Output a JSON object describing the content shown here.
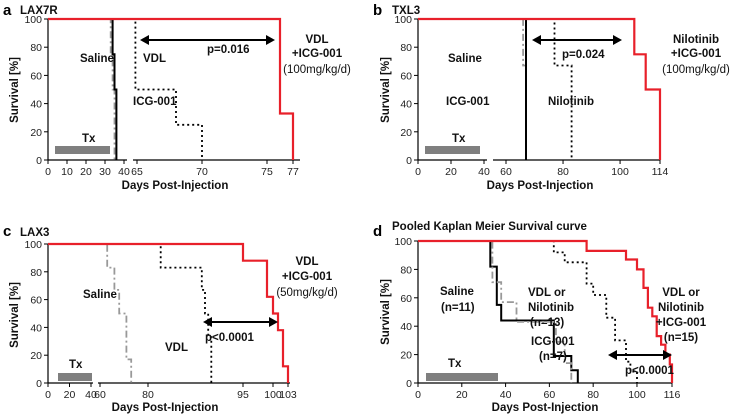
{
  "figure": {
    "xlabel": "Days Post-Injection",
    "ylabel": "Survival [%]"
  },
  "chart_data": [
    {
      "panel": "a",
      "type": "line",
      "title": "LAX7R",
      "xlabel": "Days Post-Injection",
      "ylabel": "Survival [%]",
      "ylim": [
        0,
        100
      ],
      "axis_break": true,
      "x_ticks": [
        "0",
        "10",
        "20",
        "30",
        "40",
        "65",
        "70",
        "75",
        "77"
      ],
      "y_ticks": [
        "0",
        "20",
        "40",
        "60",
        "80",
        "100"
      ],
      "series": [
        {
          "name": "Saline",
          "style": "dashdot",
          "color": "#999999",
          "x": [
            0,
            33,
            33,
            34,
            34,
            35,
            35
          ],
          "y": [
            100,
            100,
            75,
            75,
            50,
            50,
            0
          ]
        },
        {
          "name": "ICG-001",
          "style": "solid",
          "color": "#000000",
          "x": [
            0,
            34,
            34,
            35,
            35,
            36,
            36
          ],
          "y": [
            100,
            100,
            75,
            75,
            50,
            50,
            0
          ]
        },
        {
          "name": "VDL",
          "style": "dotted",
          "color": "#000000",
          "x": [
            0,
            62,
            62,
            68,
            68,
            70,
            70
          ],
          "y": [
            100,
            100,
            50,
            50,
            25,
            25,
            0
          ]
        },
        {
          "name": "",
          "style": "solid",
          "color": "#e8202a",
          "x": [
            0,
            76,
            76,
            77,
            77
          ],
          "y": [
            100,
            100,
            33,
            33,
            0
          ]
        }
      ],
      "labels": [
        {
          "text": "Saline"
        },
        {
          "text": "ICG-001"
        },
        {
          "text": "VDL"
        },
        {
          "text": "VDL"
        },
        {
          "text": "+ICG-001"
        },
        {
          "text": "(100mg/kg/d)"
        }
      ],
      "pvalue": "p=0.016",
      "tx_label": "Tx"
    },
    {
      "panel": "b",
      "type": "line",
      "title": "TXL3",
      "xlabel": "Days Post-Injection",
      "ylabel": "Survival [%]",
      "ylim": [
        0,
        100
      ],
      "axis_break": true,
      "x_ticks": [
        "0",
        "20",
        "40",
        "60",
        "80",
        "100",
        "114"
      ],
      "y_ticks": [
        "0",
        "20",
        "40",
        "60",
        "80",
        "100"
      ],
      "series": [
        {
          "name": "Saline",
          "style": "dashdot",
          "color": "#999999",
          "x": [
            0,
            66,
            66,
            67,
            67
          ],
          "y": [
            100,
            100,
            67,
            67,
            0
          ]
        },
        {
          "name": "ICG-001",
          "style": "solid",
          "color": "#000000",
          "x": [
            0,
            67,
            67
          ],
          "y": [
            100,
            100,
            0
          ]
        },
        {
          "name": "Nilotinib",
          "style": "dotted",
          "color": "#000000",
          "x": [
            0,
            77,
            77,
            83,
            83
          ],
          "y": [
            100,
            100,
            67,
            67,
            0
          ]
        },
        {
          "name": "",
          "style": "solid",
          "color": "#e8202a",
          "x": [
            0,
            105,
            105,
            109,
            109,
            114,
            114
          ],
          "y": [
            100,
            100,
            75,
            75,
            50,
            50,
            0
          ]
        }
      ],
      "labels": [
        {
          "text": "Saline"
        },
        {
          "text": "ICG-001"
        },
        {
          "text": "Nilotinib"
        },
        {
          "text": "Nilotinib"
        },
        {
          "text": "+ICG-001"
        },
        {
          "text": "(100mg/kg/d)"
        }
      ],
      "pvalue": "p=0.024",
      "tx_label": "Tx"
    },
    {
      "panel": "c",
      "type": "line",
      "title": "LAX3",
      "xlabel": "Days Post-Injection",
      "ylabel": "Survival [%]",
      "ylim": [
        0,
        100
      ],
      "axis_break": true,
      "x_ticks": [
        "0",
        "20",
        "40",
        "60",
        "80",
        "95",
        "100",
        "103"
      ],
      "y_ticks": [
        "0",
        "20",
        "40",
        "60",
        "80",
        "100"
      ],
      "series": [
        {
          "name": "Saline",
          "style": "dashdot",
          "color": "#999999",
          "x": [
            0,
            63,
            63,
            66,
            66,
            68,
            68,
            71,
            71,
            73,
            73
          ],
          "y": [
            100,
            100,
            83,
            83,
            67,
            67,
            50,
            50,
            17,
            17,
            0
          ]
        },
        {
          "name": "VDL",
          "style": "dotted",
          "color": "#000000",
          "x": [
            0,
            82,
            82,
            88.5,
            88.5,
            89,
            89,
            89.5,
            89.5,
            90,
            90
          ],
          "y": [
            100,
            100,
            83,
            83,
            67,
            67,
            50,
            50,
            33,
            33,
            0
          ]
        },
        {
          "name": "",
          "style": "solid",
          "color": "#e8202a",
          "x": [
            0,
            95,
            95,
            99,
            99,
            100,
            100,
            101,
            101,
            102,
            102,
            103,
            103
          ],
          "y": [
            100,
            100,
            88,
            88,
            62,
            62,
            50,
            50,
            38,
            38,
            12,
            12,
            0
          ]
        }
      ],
      "labels": [
        {
          "text": "Saline"
        },
        {
          "text": "VDL"
        },
        {
          "text": "VDL"
        },
        {
          "text": "+ICG-001"
        },
        {
          "text": "(50mg/kg/d)"
        }
      ],
      "pvalue": "p<0.0001",
      "tx_label": "Tx"
    },
    {
      "panel": "d",
      "type": "line",
      "title": "Pooled Kaplan Meier Survival curve",
      "xlabel": "Days Post-Injection",
      "ylabel": "Survival [%]",
      "ylim": [
        0,
        100
      ],
      "x_ticks": [
        "0",
        "20",
        "40",
        "60",
        "80",
        "100",
        "116"
      ],
      "y_ticks": [
        "0",
        "20",
        "40",
        "60",
        "80",
        "100"
      ],
      "series": [
        {
          "name": "Saline",
          "style": "solid",
          "color": "#000000",
          "x": [
            0,
            33,
            33,
            36,
            36,
            38,
            38,
            62,
            62,
            70,
            70,
            73,
            73
          ],
          "y": [
            100,
            100,
            82,
            82,
            55,
            55,
            44,
            44,
            19,
            19,
            9,
            9,
            0
          ]
        },
        {
          "name": "ICG-001",
          "style": "dashdot",
          "color": "#999999",
          "x": [
            0,
            34,
            34,
            38,
            38,
            45,
            45,
            63,
            63,
            67,
            67,
            70,
            70
          ],
          "y": [
            100,
            100,
            71,
            71,
            57,
            57,
            43,
            43,
            29,
            29,
            14,
            14,
            0
          ]
        },
        {
          "name": "VDL or Nilotinib",
          "style": "dotted",
          "color": "#000000",
          "x": [
            0,
            62,
            62,
            67,
            67,
            77,
            77,
            80,
            80,
            86,
            86,
            90,
            90,
            95,
            95,
            97,
            97,
            100,
            100
          ],
          "y": [
            100,
            100,
            92,
            92,
            85,
            85,
            70,
            70,
            62,
            62,
            46,
            46,
            30,
            30,
            15,
            15,
            8,
            8,
            0
          ]
        },
        {
          "name": "VDL or Nilotinib +ICG-001",
          "style": "solid",
          "color": "#e8202a",
          "x": [
            0,
            77,
            77,
            95,
            95,
            100,
            100,
            103,
            103,
            105,
            105,
            107,
            107,
            109,
            109,
            111,
            111,
            113,
            113,
            115,
            115,
            116,
            116
          ],
          "y": [
            100,
            100,
            93,
            93,
            87,
            87,
            80,
            80,
            67,
            67,
            53,
            53,
            47,
            47,
            33,
            33,
            27,
            27,
            20,
            20,
            13,
            13,
            0
          ]
        }
      ],
      "labels": [
        {
          "text": "Saline"
        },
        {
          "text": "(n=11)"
        },
        {
          "text": "VDL or"
        },
        {
          "text": "Nilotinib"
        },
        {
          "text": "(n=13)"
        },
        {
          "text": "ICG-001"
        },
        {
          "text": "(n=7)"
        },
        {
          "text": "VDL or"
        },
        {
          "text": "Nilotinib"
        },
        {
          "text": "+ICG-001"
        },
        {
          "text": "(n=15)"
        }
      ],
      "pvalue": "p<0.0001",
      "tx_label": "Tx"
    }
  ]
}
